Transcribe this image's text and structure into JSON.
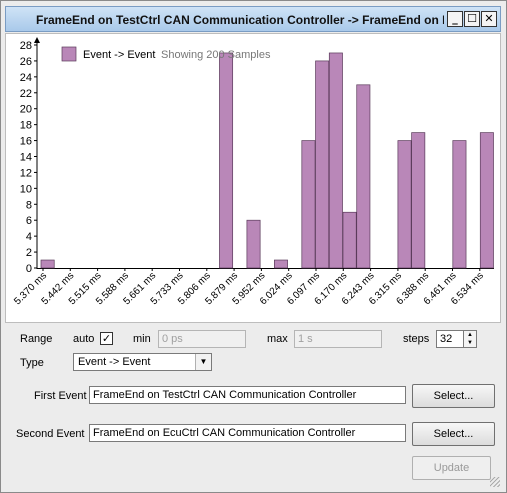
{
  "window": {
    "title": "FrameEnd on TestCtrl CAN Communication Controller -> FrameEnd on Ecu...",
    "minimize_glyph": "_",
    "maximize_glyph": "☐",
    "close_glyph": "✕",
    "icons": {
      "minimize": "minimize-icon",
      "maximize": "maximize-icon",
      "close": "close-icon"
    }
  },
  "chart_data": {
    "type": "bar",
    "legend": {
      "label": "Event -> Event",
      "note": "Showing 200 Samples",
      "position": "top-left",
      "color": "#b987b8"
    },
    "ylim": [
      0,
      28
    ],
    "yticks": [
      0,
      2,
      4,
      6,
      8,
      10,
      12,
      14,
      16,
      18,
      20,
      22,
      24,
      26,
      28
    ],
    "xtick_labels": [
      "5.370 ms",
      "5.442 ms",
      "5.515 ms",
      "5.588 ms",
      "5.661 ms",
      "5.733 ms",
      "5.806 ms",
      "5.879 ms",
      "5.952 ms",
      "6.024 ms",
      "6.097 ms",
      "6.170 ms",
      "6.243 ms",
      "6.315 ms",
      "6.388 ms",
      "6.461 ms",
      "6.534 ms"
    ],
    "values": [
      1,
      0,
      0,
      0,
      0,
      0,
      0,
      0,
      0,
      0,
      0,
      0,
      0,
      27,
      0,
      6,
      0,
      1,
      0,
      16,
      26,
      27,
      7,
      23,
      0,
      0,
      16,
      17,
      0,
      0,
      16,
      0,
      17
    ],
    "bar_color": "#b987b8",
    "grid": false
  },
  "controls": {
    "range_label": "Range",
    "auto_label": "auto",
    "auto_checked": "✓",
    "min_label": "min",
    "min_value": "0 ps",
    "max_label": "max",
    "max_value": "1 s",
    "steps_label": "steps",
    "steps_value": "32",
    "spin_up": "▲",
    "spin_down": "▼",
    "type_label": "Type",
    "type_value": "Event -> Event",
    "type_arrow": "▼",
    "first_event_label": "First Event",
    "first_event_value": "FrameEnd on TestCtrl CAN Communication Controller",
    "second_event_label": "Second Event",
    "second_event_value": "FrameEnd on EcuCtrl CAN Communication Controller",
    "select_label": "Select...",
    "update_label": "Update"
  }
}
